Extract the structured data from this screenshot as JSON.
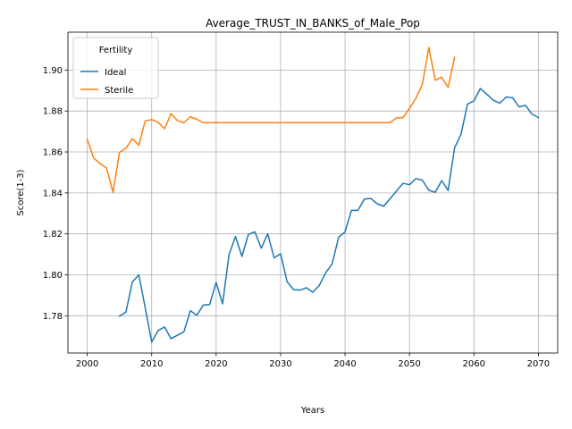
{
  "chart_data": {
    "type": "line",
    "title": "Average_TRUST_IN_BANKS_of_Male_Pop",
    "xlabel": "Years",
    "ylabel": "Score(1-3)",
    "xlim": [
      1997,
      2073
    ],
    "ylim": [
      1.7618,
      1.9185
    ],
    "xticks": [
      2000,
      2010,
      2020,
      2030,
      2040,
      2050,
      2060,
      2070
    ],
    "yticks": [
      1.78,
      1.8,
      1.82,
      1.84,
      1.86,
      1.88,
      1.9
    ],
    "grid": true,
    "legend": {
      "title": "Fertility",
      "placement": "top-left"
    },
    "series": [
      {
        "name": "Ideal",
        "color": "#1f77b4",
        "points": [
          [
            2005,
            1.7798
          ],
          [
            2006,
            1.7818
          ],
          [
            2007,
            1.7965
          ],
          [
            2008,
            1.8
          ],
          [
            2009,
            1.7838
          ],
          [
            2010,
            1.7672
          ],
          [
            2011,
            1.7728
          ],
          [
            2012,
            1.7745
          ],
          [
            2013,
            1.7688
          ],
          [
            2014,
            1.7705
          ],
          [
            2015,
            1.7722
          ],
          [
            2016,
            1.7825
          ],
          [
            2017,
            1.7802
          ],
          [
            2018,
            1.7852
          ],
          [
            2019,
            1.7855
          ],
          [
            2020,
            1.7963
          ],
          [
            2021,
            1.7858
          ],
          [
            2022,
            1.8098
          ],
          [
            2023,
            1.8187
          ],
          [
            2024,
            1.809
          ],
          [
            2025,
            1.8197
          ],
          [
            2026,
            1.821
          ],
          [
            2027,
            1.813
          ],
          [
            2028,
            1.82
          ],
          [
            2029,
            1.8083
          ],
          [
            2030,
            1.8103
          ],
          [
            2031,
            1.7967
          ],
          [
            2032,
            1.7928
          ],
          [
            2033,
            1.7925
          ],
          [
            2034,
            1.7937
          ],
          [
            2035,
            1.7915
          ],
          [
            2036,
            1.7948
          ],
          [
            2037,
            1.801
          ],
          [
            2038,
            1.8053
          ],
          [
            2039,
            1.8183
          ],
          [
            2040,
            1.821
          ],
          [
            2041,
            1.8315
          ],
          [
            2042,
            1.8315
          ],
          [
            2043,
            1.837
          ],
          [
            2044,
            1.8373
          ],
          [
            2045,
            1.8347
          ],
          [
            2046,
            1.8335
          ],
          [
            2047,
            1.8372
          ],
          [
            2048,
            1.841
          ],
          [
            2049,
            1.8447
          ],
          [
            2050,
            1.844
          ],
          [
            2051,
            1.847
          ],
          [
            2052,
            1.8462
          ],
          [
            2053,
            1.8413
          ],
          [
            2054,
            1.8403
          ],
          [
            2055,
            1.846
          ],
          [
            2056,
            1.8412
          ],
          [
            2057,
            1.862
          ],
          [
            2058,
            1.8687
          ],
          [
            2059,
            1.8833
          ],
          [
            2060,
            1.885
          ],
          [
            2061,
            1.891
          ],
          [
            2062,
            1.8882
          ],
          [
            2063,
            1.8853
          ],
          [
            2064,
            1.8838
          ],
          [
            2065,
            1.8868
          ],
          [
            2066,
            1.8865
          ],
          [
            2067,
            1.882
          ],
          [
            2068,
            1.8828
          ],
          [
            2069,
            1.8785
          ],
          [
            2070,
            1.8768
          ]
        ]
      },
      {
        "name": "Sterile",
        "color": "#ff7f0e",
        "points": [
          [
            2000,
            1.8662
          ],
          [
            2001,
            1.857
          ],
          [
            2002,
            1.8543
          ],
          [
            2003,
            1.8522
          ],
          [
            2004,
            1.8402
          ],
          [
            2005,
            1.8598
          ],
          [
            2006,
            1.8618
          ],
          [
            2007,
            1.8665
          ],
          [
            2008,
            1.8633
          ],
          [
            2009,
            1.8752
          ],
          [
            2010,
            1.8758
          ],
          [
            2011,
            1.8745
          ],
          [
            2012,
            1.8713
          ],
          [
            2013,
            1.8787
          ],
          [
            2014,
            1.8753
          ],
          [
            2015,
            1.8743
          ],
          [
            2016,
            1.8772
          ],
          [
            2017,
            1.876
          ],
          [
            2018,
            1.8743
          ],
          [
            2019,
            1.8743
          ],
          [
            2020,
            1.8743
          ],
          [
            2025,
            1.8743
          ],
          [
            2030,
            1.8743
          ],
          [
            2035,
            1.8743
          ],
          [
            2040,
            1.8743
          ],
          [
            2045,
            1.8743
          ],
          [
            2047,
            1.8743
          ],
          [
            2048,
            1.8767
          ],
          [
            2049,
            1.8767
          ],
          [
            2050,
            1.8813
          ],
          [
            2051,
            1.8862
          ],
          [
            2052,
            1.893
          ],
          [
            2053,
            1.911
          ],
          [
            2054,
            1.895
          ],
          [
            2055,
            1.8965
          ],
          [
            2056,
            1.8915
          ],
          [
            2057,
            1.9062
          ]
        ]
      }
    ]
  }
}
